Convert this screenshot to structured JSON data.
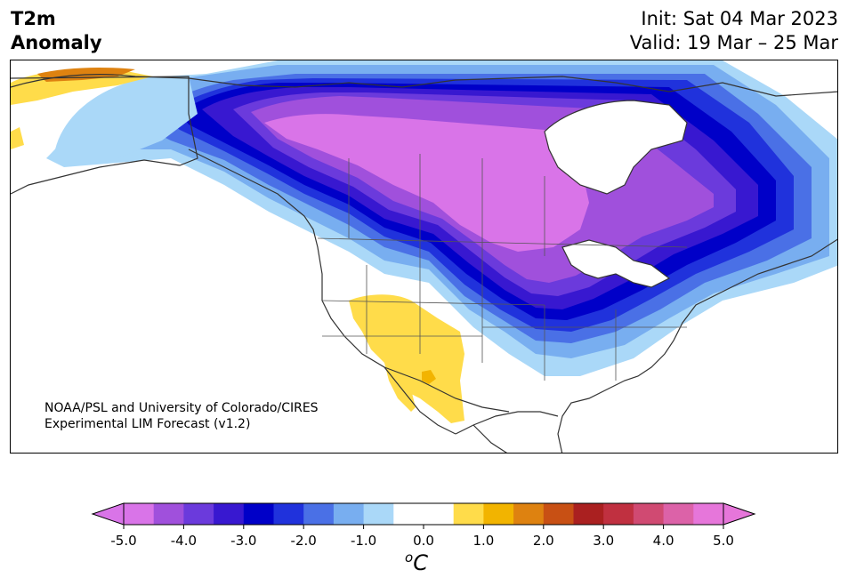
{
  "header": {
    "title_line1": "T2m",
    "title_line2": "Anomaly",
    "init": "Init: Sat 04 Mar 2023",
    "valid": "Valid: 19 Mar – 25 Mar"
  },
  "credit": {
    "line1": "NOAA/PSL and University of Colorado/CIRES",
    "line2": "Experimental LIM Forecast (v1.2)"
  },
  "colorbar": {
    "ticks": [
      "-5.0",
      "-4.0",
      "-3.0",
      "-2.0",
      "-1.0",
      "0.0",
      "1.0",
      "2.0",
      "3.0",
      "4.0",
      "5.0"
    ],
    "unit_sup": "o",
    "unit": "C",
    "colors": [
      "#d974e8",
      "#a050dc",
      "#6b3adc",
      "#3818d0",
      "#0000c8",
      "#2032dc",
      "#4a70e6",
      "#78aef0",
      "#aad8f8",
      "#ffffff",
      "#ffffff",
      "#ffdc4a",
      "#f2b400",
      "#de8210",
      "#c85014",
      "#aa2020",
      "#c03040",
      "#d04a72",
      "#dc62a8",
      "#e676da"
    ]
  },
  "map": {
    "anomaly_colors": {
      "cold_5": "#d974e8",
      "cold_45": "#a050dc",
      "cold_4": "#6b3adc",
      "cold_35": "#3818d0",
      "cold_3": "#0000c8",
      "cold_25": "#2032dc",
      "cold_2": "#4a70e6",
      "cold_15": "#78aef0",
      "cold_1": "#aad8f8",
      "warm_1": "#ffdc4a",
      "warm_15": "#f2b400",
      "warm_2": "#de8210",
      "warm_25": "#c85014"
    }
  }
}
